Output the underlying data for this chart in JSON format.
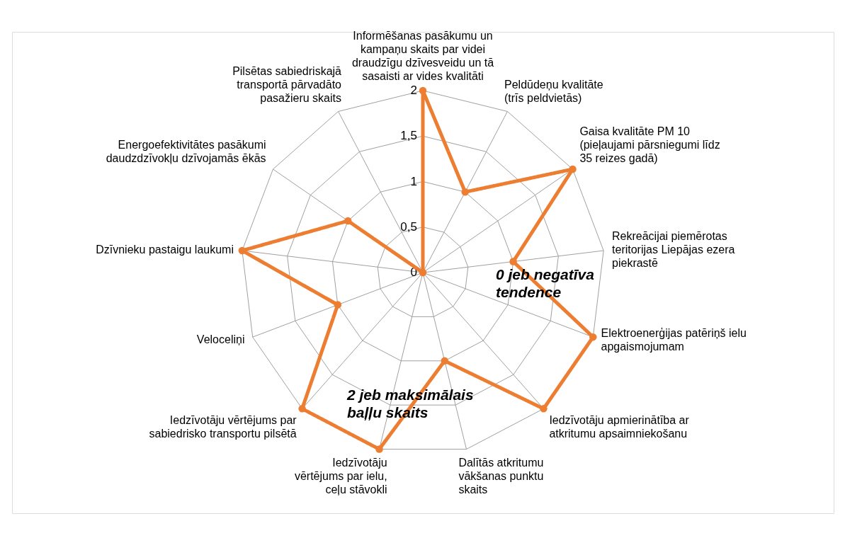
{
  "chart_data": {
    "type": "radar",
    "categories": [
      "Informēšanas pasākumu un kampaņu skaits par videi draudzīgu dzīvesveidu un tā sasaisti ar vides kvalitāti",
      "Peldūdeņu kvalitāte (trīs peldvietās)",
      "Gaisa kvalitāte PM 10 (pieļaujami pārsniegumi līdz 35 reizes gadā)",
      "Rekreācijai piemērotas teritorijas Liepājas ezera piekrastē",
      "Elektroenerģijas patēriņš ielu apgaismojumam",
      "Iedzīvotāju apmierinātība ar atkritumu apsaimniekošanu",
      "Dalītās atkritumu vākšanas punktu skaits",
      "Iedzīvotāju vērtējums par ielu, ceļu stāvokli",
      "Iedzīvotāju vērtējums par sabiedrisko transportu pilsētā",
      "Veloceliņi",
      "Dzīvnieku pastaigu laukumi",
      "Energoefektivitātes pasākumi daudzdzīvokļu dzīvojamās ēkās",
      "Pilsētas sabiedriskajā transportā pārvadāto pasažieru skaits"
    ],
    "series": [
      {
        "color": "#ed7d31",
        "values": [
          2,
          1,
          2,
          1,
          2,
          2,
          1,
          2,
          2,
          1,
          2,
          1,
          0
        ]
      }
    ],
    "ylim": [
      0,
      2
    ],
    "yticks": [
      0,
      {
        "value": 0.5,
        "label": "0,5"
      },
      1,
      {
        "value": 1.5,
        "label": "1,5"
      },
      2
    ],
    "grid": true,
    "marker": "circle",
    "line_style": "solid",
    "annotations": [
      "0 jeb negatīva tendence",
      "2 jeb maksimālais baļļu skaits"
    ]
  }
}
